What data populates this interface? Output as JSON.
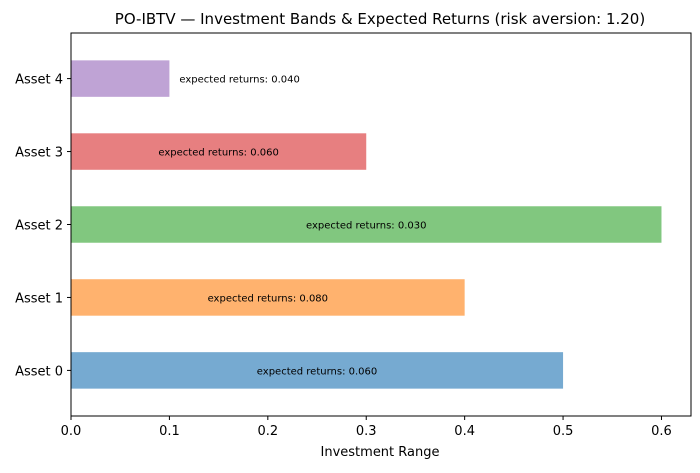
{
  "chart_data": {
    "type": "bar",
    "orientation": "horizontal",
    "title": "PO-IBTV — Investment Bands & Expected Returns (risk aversion: 1.20)",
    "xlabel": "Investment Range",
    "ylabel": "",
    "categories": [
      "Asset 0",
      "Asset 1",
      "Asset 2",
      "Asset 3",
      "Asset 4"
    ],
    "values": [
      0.5,
      0.4,
      0.6,
      0.3,
      0.1
    ],
    "annotations": [
      "expected returns: 0.060",
      "expected returns: 0.080",
      "expected returns: 0.030",
      "expected returns: 0.060",
      "expected returns: 0.040"
    ],
    "colors": [
      "#76aad1",
      "#ffb26e",
      "#81c77f",
      "#e77f80",
      "#bfa3d5"
    ],
    "xlim": [
      0,
      0.63
    ],
    "xticks": [
      "0.0",
      "0.1",
      "0.2",
      "0.3",
      "0.4",
      "0.5",
      "0.6"
    ],
    "xtick_values": [
      0,
      0.1,
      0.2,
      0.3,
      0.4,
      0.5,
      0.6
    ],
    "grid": false,
    "legend": "none"
  }
}
